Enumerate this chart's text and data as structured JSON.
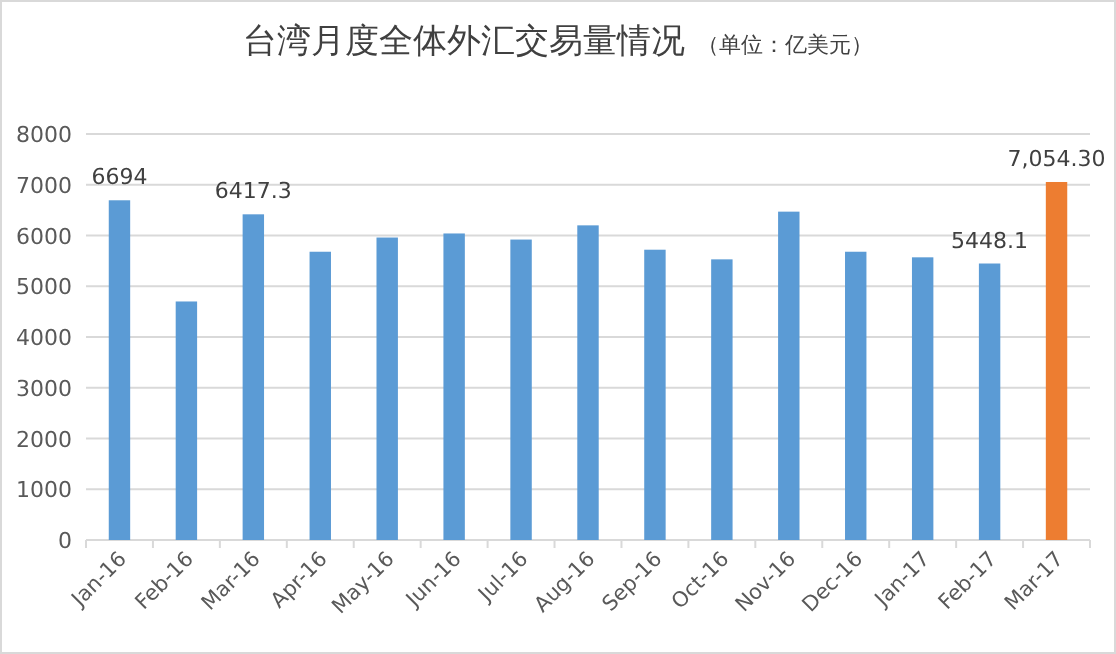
{
  "chart_data": {
    "type": "bar",
    "title": "台湾月度全体外汇交易量情况",
    "subtitle": "（单位：亿美元）",
    "categories": [
      "Jan-16",
      "Feb-16",
      "Mar-16",
      "Apr-16",
      "May-16",
      "Jun-16",
      "Jul-16",
      "Aug-16",
      "Sep-16",
      "Oct-16",
      "Nov-16",
      "Dec-16",
      "Jan-17",
      "Feb-17",
      "Mar-17"
    ],
    "values": [
      6694,
      4700,
      6417.3,
      5680,
      5960,
      6040,
      5920,
      6200,
      5720,
      5530,
      6470,
      5680,
      5570,
      5448.1,
      7054.3
    ],
    "colors": [
      "#5b9bd5",
      "#5b9bd5",
      "#5b9bd5",
      "#5b9bd5",
      "#5b9bd5",
      "#5b9bd5",
      "#5b9bd5",
      "#5b9bd5",
      "#5b9bd5",
      "#5b9bd5",
      "#5b9bd5",
      "#5b9bd5",
      "#5b9bd5",
      "#5b9bd5",
      "#ed7d31"
    ],
    "value_labels": [
      "6694",
      null,
      "6417.3",
      null,
      null,
      null,
      null,
      null,
      null,
      null,
      null,
      null,
      null,
      "5448.1",
      "7,054.30"
    ],
    "ylim": [
      0,
      8000
    ],
    "yticks": [
      0,
      1000,
      2000,
      3000,
      4000,
      5000,
      6000,
      7000,
      8000
    ],
    "grid": "y"
  }
}
